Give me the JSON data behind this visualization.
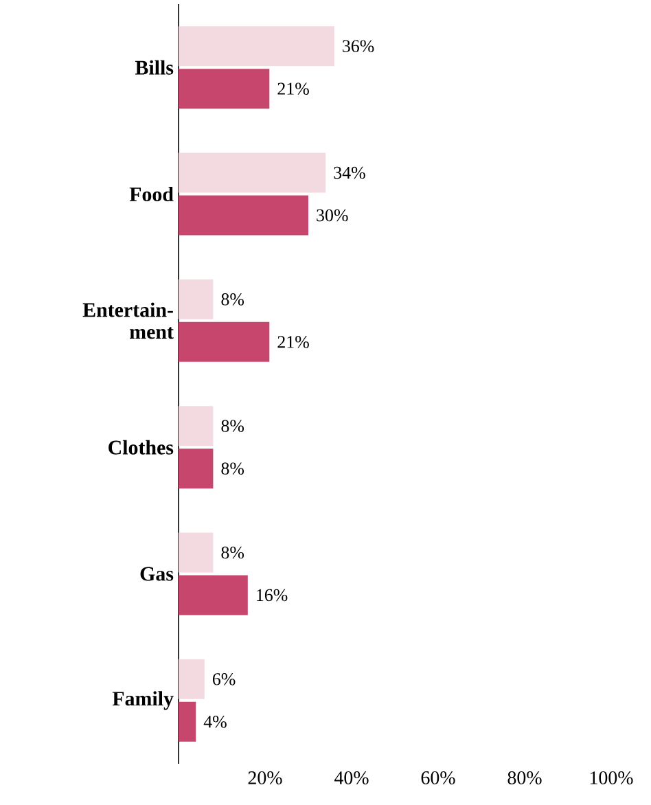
{
  "chart_data": {
    "type": "bar",
    "orientation": "horizontal",
    "categories": [
      "Bills",
      "Food",
      "Entertain- ment",
      "Clothes",
      "Gas",
      "Family"
    ],
    "series": [
      {
        "color": "#f3d9e0",
        "values": [
          36,
          34,
          8,
          8,
          8,
          6
        ],
        "value_labels": [
          "36%",
          "34%",
          "8%",
          "8%",
          "8%",
          "6%"
        ]
      },
      {
        "color": "#c6466d",
        "values": [
          21,
          30,
          21,
          8,
          16,
          4
        ],
        "value_labels": [
          "21%",
          "30%",
          "21%",
          "8%",
          "16%",
          "4%"
        ]
      }
    ],
    "xlim": [
      0,
      100
    ],
    "xticks": [
      {
        "value": 20,
        "label": "20%"
      },
      {
        "value": 40,
        "label": "40%"
      },
      {
        "value": 60,
        "label": "60%"
      },
      {
        "value": 80,
        "label": "80%"
      },
      {
        "value": 100,
        "label": "100%"
      }
    ],
    "grid": false
  }
}
